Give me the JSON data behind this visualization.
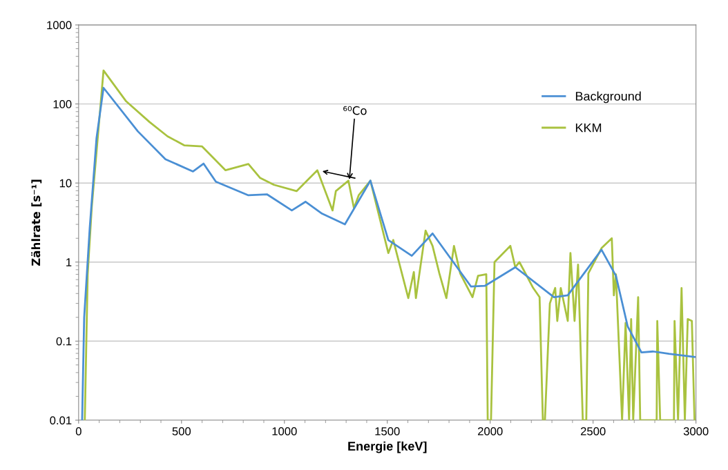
{
  "chart_data": {
    "type": "line",
    "xlabel": "Energie [keV]",
    "ylabel": "Zählrate [s⁻¹]",
    "log": "y",
    "grid": "y",
    "legend": "top right",
    "line_style": "solid",
    "marker": "none",
    "xlim": [
      0,
      3000
    ],
    "xticks": [
      0,
      500,
      1000,
      1500,
      2000,
      2500,
      3000
    ],
    "ylim": [
      0.01,
      1000
    ],
    "yticks": [
      0.01,
      0.1,
      1,
      10,
      100,
      1000
    ],
    "series": [
      {
        "name": "Background",
        "color": "#4a8fd4",
        "x": [
          17,
          27,
          54,
          87,
          121,
          288,
          422,
          556,
          607,
          667,
          825,
          915,
          1036,
          1103,
          1183,
          1294,
          1418,
          1505,
          1619,
          1720,
          1907,
          1974,
          2122,
          2310,
          2377,
          2541,
          2611,
          2668,
          2735,
          2792,
          2869,
          2993
        ],
        "values": [
          0.01,
          0.2,
          2.7,
          37,
          160,
          45,
          20,
          14,
          17.6,
          10.4,
          7,
          7.2,
          4.5,
          5.8,
          4.1,
          3,
          10.7,
          1.9,
          1.2,
          2.3,
          0.49,
          0.5,
          0.86,
          0.36,
          0.38,
          1.43,
          0.67,
          0.154,
          0.072,
          0.074,
          0.069,
          0.063
        ]
      },
      {
        "name": "KKM",
        "color": "#a9c23f",
        "x": [
          30,
          44,
          64,
          121,
          231,
          345,
          432,
          513,
          600,
          714,
          825,
          882,
          949,
          1059,
          1160,
          1234,
          1250,
          1311,
          1338,
          1361,
          1418,
          1505,
          1529,
          1602,
          1629,
          1639,
          1686,
          1720,
          1753,
          1787,
          1824,
          1854,
          1914,
          1941,
          1981,
          1988,
          2004,
          2021,
          2098,
          2122,
          2142,
          2209,
          2240,
          2256,
          2266,
          2290,
          2316,
          2326,
          2343,
          2377,
          2390,
          2410,
          2427,
          2450,
          2467,
          2477,
          2541,
          2591,
          2601,
          2611,
          2641,
          2658,
          2675,
          2685,
          2695,
          2719,
          2729,
          2809,
          2812,
          2826,
          2893,
          2896,
          2913,
          2930,
          2946,
          2960,
          2980,
          2993
        ],
        "values": [
          0.01,
          0.7,
          5,
          265,
          108,
          59,
          39,
          30,
          29,
          14.5,
          17.4,
          11.6,
          9.5,
          7.9,
          14.5,
          4.5,
          7.9,
          10.7,
          4.8,
          7,
          10.7,
          1.3,
          1.9,
          0.35,
          0.75,
          0.35,
          2.5,
          1.6,
          0.72,
          0.35,
          1.6,
          0.72,
          0.36,
          0.67,
          0.7,
          0.01,
          0.01,
          1,
          1.6,
          0.86,
          1,
          0.47,
          0.36,
          0.01,
          0.01,
          0.3,
          0.47,
          0.18,
          0.47,
          0.18,
          1.3,
          0.18,
          0.93,
          0.01,
          0.01,
          0.72,
          1.5,
          2,
          0.38,
          0.7,
          0.01,
          0.17,
          0.01,
          0.19,
          0.01,
          0.36,
          0.01,
          0.01,
          0.18,
          0.01,
          0.01,
          0.18,
          0.01,
          0.47,
          0.01,
          0.19,
          0.18,
          0.01
        ]
      }
    ],
    "annotations": [
      {
        "text": "⁶⁰Co",
        "x": 1315,
        "y": 10.5
      }
    ]
  }
}
